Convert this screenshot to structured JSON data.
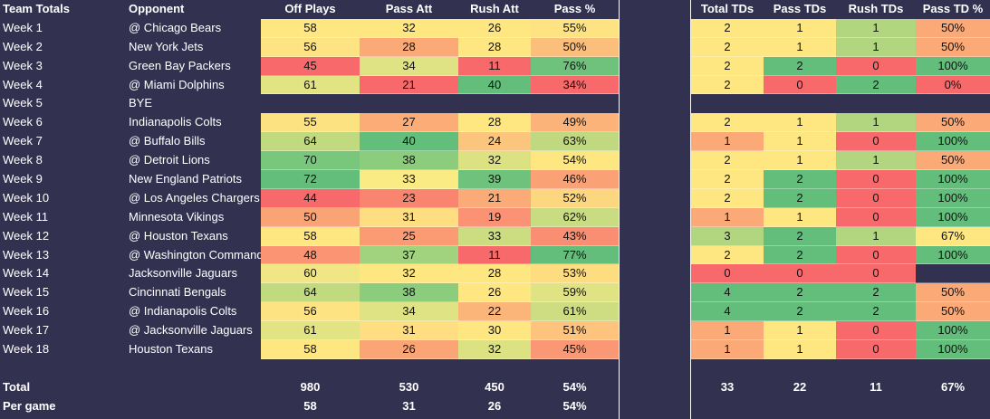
{
  "headers": {
    "team": "Team Totals",
    "opponent": "Opponent",
    "cols": [
      "Off Plays",
      "Pass Att",
      "Rush Att",
      "Pass %"
    ],
    "td_cols": [
      "Total TDs",
      "Pass TDs",
      "Rush TDs",
      "Pass TD %"
    ]
  },
  "rows": [
    {
      "week": "Week 1",
      "opp": "@ Chicago Bears",
      "vals": [
        "58",
        "32",
        "26",
        "55%"
      ],
      "colors": [
        "#fee681",
        "#fee681",
        "#fee681",
        "#fde381"
      ],
      "tds": [
        "2",
        "1",
        "1",
        "50%"
      ],
      "tdcolors": [
        "#fee681",
        "#fee681",
        "#b2d67f",
        "#fbaa77"
      ]
    },
    {
      "week": "Week 2",
      "opp": "New York Jets",
      "vals": [
        "56",
        "28",
        "28",
        "50%"
      ],
      "colors": [
        "#fde381",
        "#fbaa77",
        "#fee681",
        "#fbbe7b"
      ],
      "tds": [
        "2",
        "1",
        "1",
        "50%"
      ],
      "tdcolors": [
        "#fee681",
        "#fee681",
        "#b2d67f",
        "#fbaa77"
      ]
    },
    {
      "week": "Week 3",
      "opp": "Green Bay Packers",
      "vals": [
        "45",
        "34",
        "11",
        "76%"
      ],
      "colors": [
        "#f8696b",
        "#e0e383",
        "#f8696b",
        "#6fc27c"
      ],
      "tds": [
        "2",
        "2",
        "0",
        "100%"
      ],
      "tdcolors": [
        "#fee681",
        "#63be7b",
        "#f8696b",
        "#63be7b"
      ]
    },
    {
      "week": "Week 4",
      "opp": "@ Miami Dolphins",
      "vals": [
        "61",
        "21",
        "40",
        "34%"
      ],
      "colors": [
        "#e2e383",
        "#f8696b",
        "#63be7b",
        "#f8696b"
      ],
      "tds": [
        "2",
        "0",
        "2",
        "0%"
      ],
      "tdcolors": [
        "#fee681",
        "#f8696b",
        "#63be7b",
        "#f8696b"
      ]
    },
    {
      "week": "Week 5",
      "opp": "BYE",
      "bye": true
    },
    {
      "week": "Week 6",
      "opp": "Indianapolis Colts",
      "vals": [
        "55",
        "27",
        "28",
        "49%"
      ],
      "colors": [
        "#fde281",
        "#fbac77",
        "#fee681",
        "#fbb379"
      ],
      "tds": [
        "2",
        "1",
        "1",
        "50%"
      ],
      "tdcolors": [
        "#fee681",
        "#fee681",
        "#b2d67f",
        "#fbaa77"
      ]
    },
    {
      "week": "Week 7",
      "opp": "@ Buffalo Bills",
      "vals": [
        "64",
        "40",
        "24",
        "63%"
      ],
      "colors": [
        "#c1da80",
        "#63be7b",
        "#fcc57d",
        "#c0d980"
      ],
      "tds": [
        "1",
        "1",
        "0",
        "100%"
      ],
      "tdcolors": [
        "#fbaa77",
        "#fee681",
        "#f8696b",
        "#63be7b"
      ]
    },
    {
      "week": "Week 8",
      "opp": "@ Detroit Lions",
      "vals": [
        "70",
        "38",
        "32",
        "54%"
      ],
      "colors": [
        "#78c77d",
        "#8bcc7d",
        "#dce182",
        "#fee681"
      ],
      "tds": [
        "2",
        "1",
        "1",
        "50%"
      ],
      "tdcolors": [
        "#fee681",
        "#fee681",
        "#b2d67f",
        "#fbaa77"
      ]
    },
    {
      "week": "Week 9",
      "opp": "New England Patriots",
      "vals": [
        "72",
        "33",
        "39",
        "46%"
      ],
      "colors": [
        "#63be7b",
        "#fbeb84",
        "#6fc27c",
        "#fba176"
      ],
      "tds": [
        "2",
        "2",
        "0",
        "100%"
      ],
      "tdcolors": [
        "#fee681",
        "#63be7b",
        "#f8696b",
        "#63be7b"
      ]
    },
    {
      "week": "Week 10",
      "opp": "@ Los Angeles Chargers",
      "vals": [
        "44",
        "23",
        "21",
        "52%"
      ],
      "colors": [
        "#f8696b",
        "#f98570",
        "#fbab77",
        "#fdd680"
      ],
      "tds": [
        "2",
        "2",
        "0",
        "100%"
      ],
      "tdcolors": [
        "#fee681",
        "#63be7b",
        "#f8696b",
        "#63be7b"
      ]
    },
    {
      "week": "Week 11",
      "opp": "Minnesota Vikings",
      "vals": [
        "50",
        "31",
        "19",
        "62%"
      ],
      "colors": [
        "#faa375",
        "#fede81",
        "#fa9273",
        "#c9dc81"
      ],
      "tds": [
        "1",
        "1",
        "0",
        "100%"
      ],
      "tdcolors": [
        "#fbaa77",
        "#fee681",
        "#f8696b",
        "#63be7b"
      ]
    },
    {
      "week": "Week 12",
      "opp": "@ Houston Texans",
      "vals": [
        "58",
        "25",
        "33",
        "43%"
      ],
      "colors": [
        "#fee681",
        "#fb9b74",
        "#cbdc81",
        "#fa8e72"
      ],
      "tds": [
        "3",
        "2",
        "1",
        "67%"
      ],
      "tdcolors": [
        "#b2d67f",
        "#63be7b",
        "#b2d67f",
        "#fee681"
      ]
    },
    {
      "week": "Week 13",
      "opp": "@ Washington Commanders",
      "vals": [
        "48",
        "37",
        "11",
        "77%"
      ],
      "colors": [
        "#fa9473",
        "#a1d27e",
        "#f8696b",
        "#63be7b"
      ],
      "tds": [
        "2",
        "2",
        "0",
        "100%"
      ],
      "tdcolors": [
        "#fee681",
        "#63be7b",
        "#f8696b",
        "#63be7b"
      ]
    },
    {
      "week": "Week 14",
      "opp": "Jacksonville Jaguars",
      "vals": [
        "60",
        "32",
        "28",
        "53%"
      ],
      "colors": [
        "#f0e784",
        "#fee681",
        "#fee681",
        "#fedd81"
      ],
      "tds": [
        "0",
        "0",
        "0",
        ""
      ],
      "tdcolors": [
        "#f8696b",
        "#f8696b",
        "#f8696b",
        "#333150"
      ]
    },
    {
      "week": "Week 15",
      "opp": "Cincinnati Bengals",
      "vals": [
        "64",
        "38",
        "26",
        "59%"
      ],
      "colors": [
        "#c1da80",
        "#8bcc7d",
        "#fee681",
        "#e0e383"
      ],
      "tds": [
        "4",
        "2",
        "2",
        "50%"
      ],
      "tdcolors": [
        "#63be7b",
        "#63be7b",
        "#63be7b",
        "#fbaa77"
      ]
    },
    {
      "week": "Week 16",
      "opp": "@ Indianapolis Colts",
      "vals": [
        "56",
        "34",
        "22",
        "61%"
      ],
      "colors": [
        "#fde381",
        "#e0e383",
        "#fbb579",
        "#cfdd82"
      ],
      "tds": [
        "4",
        "2",
        "2",
        "50%"
      ],
      "tdcolors": [
        "#63be7b",
        "#63be7b",
        "#63be7b",
        "#fbaa77"
      ]
    },
    {
      "week": "Week 17",
      "opp": "@ Jacksonville Jaguars",
      "vals": [
        "61",
        "31",
        "30",
        "51%"
      ],
      "colors": [
        "#e2e383",
        "#fede81",
        "#fee681",
        "#fec37c"
      ],
      "tds": [
        "1",
        "1",
        "0",
        "100%"
      ],
      "tdcolors": [
        "#fbaa77",
        "#fee681",
        "#f8696b",
        "#63be7b"
      ]
    },
    {
      "week": "Week 18",
      "opp": "Houston Texans",
      "vals": [
        "58",
        "26",
        "32",
        "45%"
      ],
      "colors": [
        "#fee681",
        "#fba576",
        "#dce182",
        "#fa9774"
      ],
      "tds": [
        "1",
        "1",
        "0",
        "100%"
      ],
      "tdcolors": [
        "#fbaa77",
        "#fee681",
        "#f8696b",
        "#63be7b"
      ]
    }
  ],
  "totals": {
    "label": "Total",
    "vals": [
      "980",
      "530",
      "450",
      "54%"
    ],
    "tds": [
      "33",
      "22",
      "11",
      "67%"
    ]
  },
  "per_game": {
    "label": "Per game",
    "vals": [
      "58",
      "31",
      "26",
      "54%"
    ]
  }
}
